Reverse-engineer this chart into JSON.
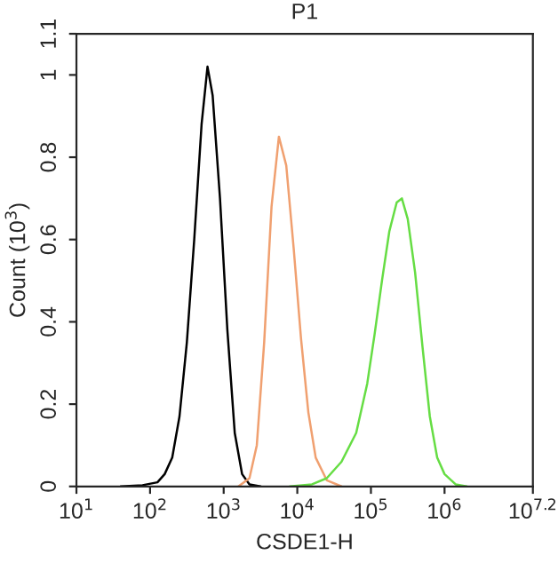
{
  "chart_data": {
    "type": "line",
    "title": "P1",
    "xlabel": "CSDE1-H",
    "ylabel": "Count (10$^{3}$)",
    "log": "x",
    "xlim": [
      10,
      15848932
    ],
    "xticks": [
      {
        "value": 10,
        "label": "10$^{1}$"
      },
      {
        "value": 100,
        "label": "10$^{2}$"
      },
      {
        "value": 1000,
        "label": "10$^{3}$"
      },
      {
        "value": 10000,
        "label": "10$^{4}$"
      },
      {
        "value": 100000,
        "label": "10$^{5}$"
      },
      {
        "value": 1000000,
        "label": "10$^{6}$"
      },
      {
        "value": 15848932,
        "label": "10$^{7.2}$"
      }
    ],
    "ylim": [
      0,
      1.1
    ],
    "yticks": [
      0,
      0.2,
      0.4,
      0.6,
      0.8,
      1,
      1.1
    ],
    "grid": false,
    "marker": "none",
    "line_style": "solid",
    "series": [
      {
        "color": "#000000",
        "x": [
          40,
          79,
          126,
          158,
          200,
          251,
          316,
          398,
          501,
          603,
          708,
          891,
          1122,
          1413,
          1778,
          2239,
          3162
        ],
        "values": [
          0,
          0.003,
          0.01,
          0.03,
          0.07,
          0.17,
          0.35,
          0.6,
          0.88,
          1.02,
          0.95,
          0.7,
          0.38,
          0.13,
          0.03,
          0.005,
          0
        ]
      },
      {
        "color": "#f0a070",
        "x": [
          1585,
          2239,
          2818,
          3548,
          4467,
          5623,
          7079,
          8913,
          11220,
          14125,
          17783,
          25119,
          39811
        ],
        "values": [
          0,
          0.02,
          0.1,
          0.35,
          0.68,
          0.85,
          0.78,
          0.58,
          0.36,
          0.18,
          0.07,
          0.015,
          0
        ]
      },
      {
        "color": "#66dd44",
        "x": [
          7943,
          15849,
          25119,
          39811,
          63096,
          89125,
          112202,
          141254,
          177828,
          223872,
          263027,
          316228,
          398107,
          501187,
          630957,
          794328,
          1000000,
          1412538,
          1995262
        ],
        "values": [
          0,
          0.005,
          0.02,
          0.06,
          0.13,
          0.25,
          0.37,
          0.5,
          0.62,
          0.69,
          0.7,
          0.65,
          0.52,
          0.34,
          0.17,
          0.07,
          0.03,
          0.005,
          0
        ]
      }
    ]
  }
}
